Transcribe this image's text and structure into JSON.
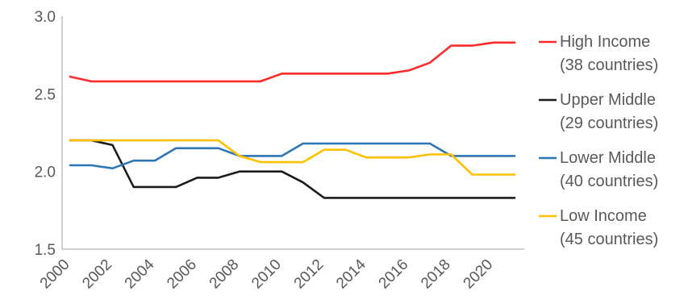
{
  "chart_data": {
    "type": "line",
    "title": "",
    "xlabel": "",
    "ylabel": "",
    "ylim": [
      1.5,
      3.0
    ],
    "yticks": [
      "1.5",
      "2.0",
      "2.5",
      "3.0"
    ],
    "xlim": [
      2000,
      2021
    ],
    "xticks": [
      "2000",
      "2002",
      "2004",
      "2006",
      "2008",
      "2010",
      "2012",
      "2014",
      "2016",
      "2018",
      "2020"
    ],
    "grid": false,
    "legend_position": "right",
    "x": [
      2000,
      2001,
      2002,
      2003,
      2004,
      2005,
      2006,
      2007,
      2008,
      2009,
      2010,
      2011,
      2012,
      2013,
      2014,
      2015,
      2016,
      2017,
      2018,
      2019,
      2020,
      2021
    ],
    "series": [
      {
        "name": "High Income",
        "sub": "(38 countries)",
        "color": "#ff2a2a",
        "values": [
          2.61,
          2.58,
          2.58,
          2.58,
          2.58,
          2.58,
          2.58,
          2.58,
          2.58,
          2.58,
          2.63,
          2.63,
          2.63,
          2.63,
          2.63,
          2.63,
          2.65,
          2.7,
          2.81,
          2.81,
          2.83,
          2.83
        ]
      },
      {
        "name": "Upper Middle",
        "sub": "(29 countries)",
        "color": "#1c1c1c",
        "values": [
          2.2,
          2.2,
          2.17,
          1.9,
          1.9,
          1.9,
          1.96,
          1.96,
          2.0,
          2.0,
          2.0,
          1.93,
          1.83,
          1.83,
          1.83,
          1.83,
          1.83,
          1.83,
          1.83,
          1.83,
          1.83,
          1.83
        ]
      },
      {
        "name": "Lower Middle",
        "sub": "(40 countries)",
        "color": "#2e75b6",
        "values": [
          2.04,
          2.04,
          2.02,
          2.07,
          2.07,
          2.15,
          2.15,
          2.15,
          2.1,
          2.1,
          2.1,
          2.18,
          2.18,
          2.18,
          2.18,
          2.18,
          2.18,
          2.18,
          2.1,
          2.1,
          2.1,
          2.1
        ]
      },
      {
        "name": "Low Income",
        "sub": "(45 countries)",
        "color": "#ffc000",
        "values": [
          2.2,
          2.2,
          2.2,
          2.2,
          2.2,
          2.2,
          2.2,
          2.2,
          2.1,
          2.06,
          2.06,
          2.06,
          2.14,
          2.14,
          2.09,
          2.09,
          2.09,
          2.11,
          2.11,
          1.98,
          1.98,
          1.98
        ]
      }
    ]
  }
}
